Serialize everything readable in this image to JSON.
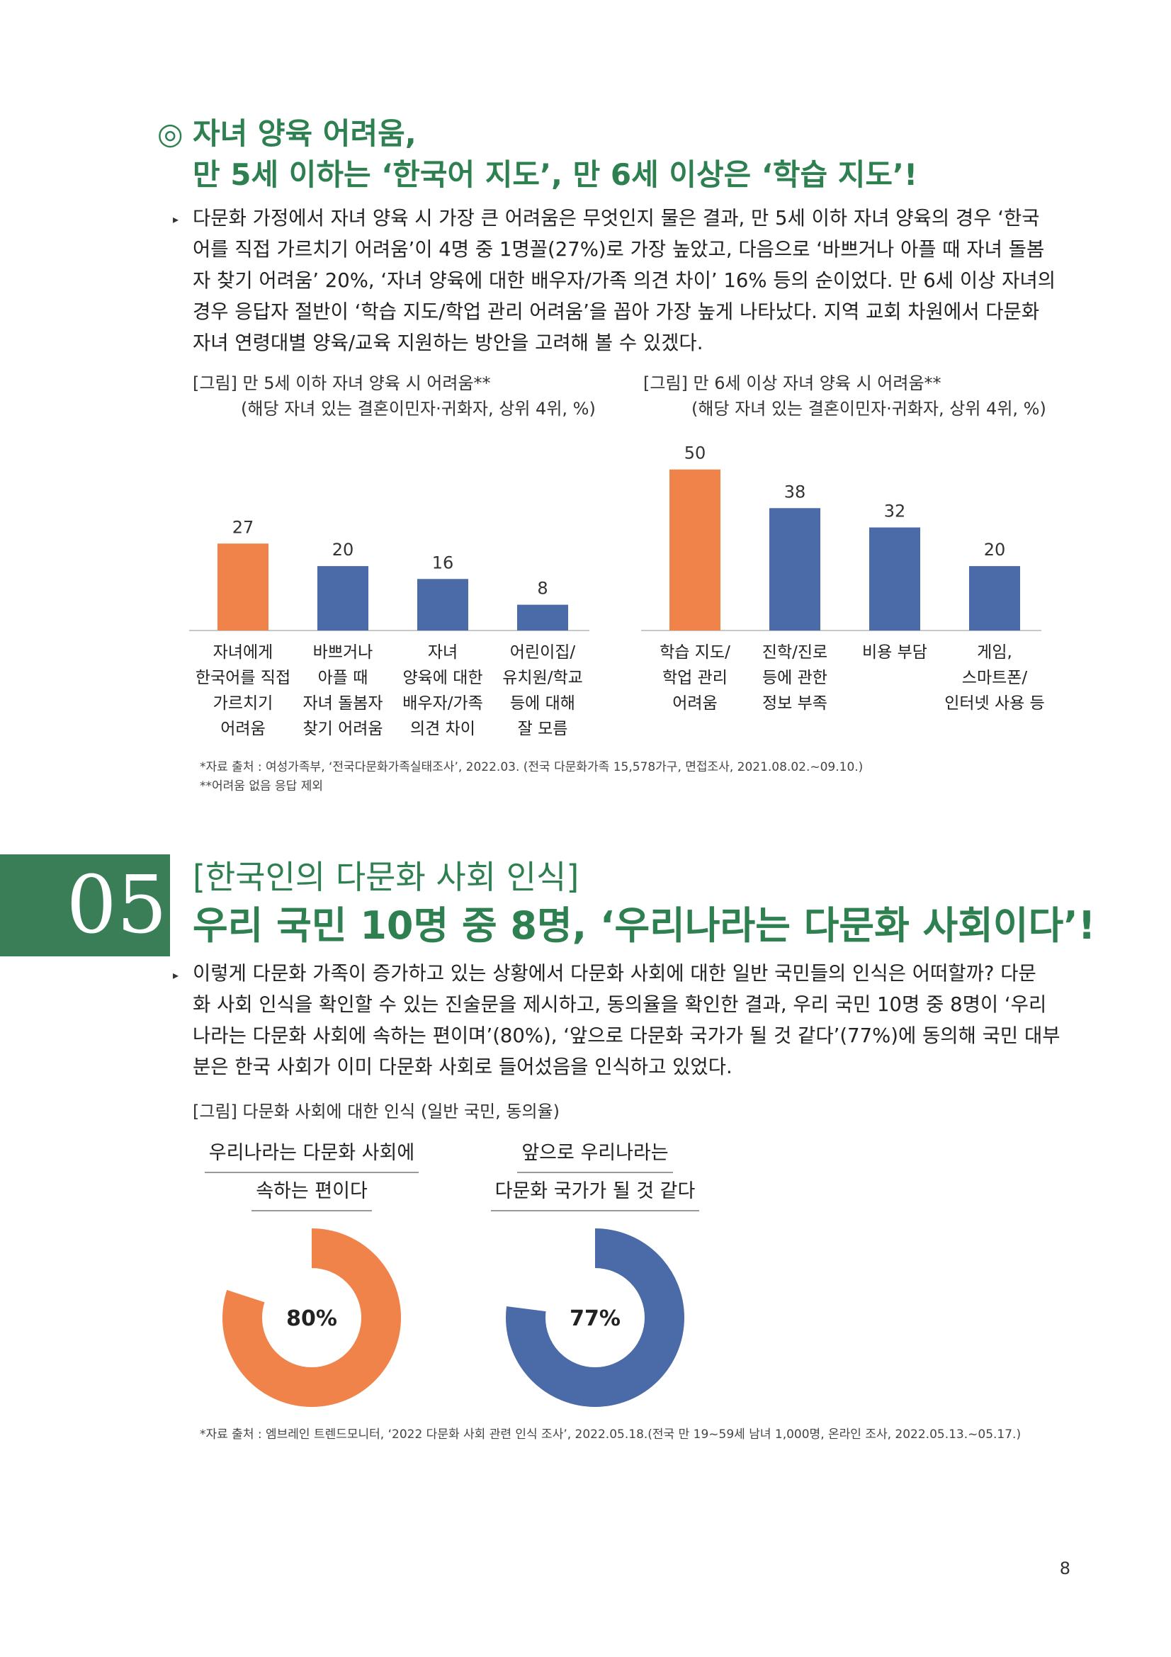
{
  "section1": {
    "heading_symbol": "◎",
    "heading_line1": "자녀 양육 어려움,",
    "heading_line2": "만 5세 이하는 ‘한국어 지도’, 만 6세 이상은 ‘학습 지도’!",
    "bullet": "▸",
    "paragraph_lines": [
      "다문화 가정에서 자녀 양육 시 가장 큰 어려움은 무엇인지 물은 결과, 만 5세 이하 자녀 양육의 경우 ‘한국",
      "어를 직접 가르치기 어려움’이 4명 중 1명꼴(27%)로 가장 높았고, 다음으로 ‘바쁘거나 아플 때 자녀 돌봄",
      "자 찾기 어려움’ 20%, ‘자녀 양육에 대한 배우자/가족 의견 차이’ 16% 등의 순이었다. 만 6세 이상 자녀의",
      "경우 응답자 절반이 ‘학습 지도/학업 관리 어려움’을 꼽아 가장 높게 나타났다. 지역 교회 차원에서 다문화",
      "자녀 연령대별 양육/교육 지원하는 방안을 고려해 볼 수 있겠다."
    ]
  },
  "chart_data": [
    {
      "type": "bar",
      "title": "[그림] 만 5세 이하 자녀 양육 시 어려움**",
      "subtitle": "(해당 자녀 있는 결혼이민자·귀화자, 상위 4위, %)",
      "categories": [
        [
          "자녀에게",
          "한국어를 직접",
          "가르치기",
          "어려움"
        ],
        [
          "바쁘거나",
          "아플 때",
          "자녀 돌봄자",
          "찾기 어려움"
        ],
        [
          "자녀",
          "양육에 대한",
          "배우자/가족",
          "의견 차이"
        ],
        [
          "어린이집/",
          "유치원/학교",
          "등에 대해",
          "잘 모름"
        ]
      ],
      "values": [
        27,
        20,
        16,
        8
      ],
      "colors": [
        "#f0834a",
        "#4a6aa8",
        "#4a6aa8",
        "#4a6aa8"
      ],
      "ylim": [
        0,
        55
      ]
    },
    {
      "type": "bar",
      "title": "[그림] 만 6세 이상 자녀 양육 시 어려움**",
      "subtitle": "(해당 자녀 있는 결혼이민자·귀화자, 상위 4위, %)",
      "categories": [
        [
          "학습 지도/",
          "학업 관리",
          "어려움"
        ],
        [
          "진학/진로",
          "등에 관한",
          "정보 부족"
        ],
        [
          "비용 부담"
        ],
        [
          "게임,",
          "스마트폰/",
          "인터넷 사용 등"
        ]
      ],
      "values": [
        50,
        38,
        32,
        20
      ],
      "colors": [
        "#f0834a",
        "#4a6aa8",
        "#4a6aa8",
        "#4a6aa8"
      ],
      "ylim": [
        0,
        55
      ]
    },
    {
      "type": "pie",
      "title": "[그림] 다문화 사회에 대한 인식 (일반 국민, 동의율)",
      "items": [
        {
          "label_lines": [
            "우리나라는 다문화 사회에",
            "속하는 편이다"
          ],
          "value": 80,
          "display": "80%",
          "color": "#f0834a"
        },
        {
          "label_lines": [
            "앞으로 우리나라는",
            "다문화 국가가 될 것 같다"
          ],
          "value": 77,
          "display": "77%",
          "color": "#4a6aa8"
        }
      ]
    }
  ],
  "notes1": [
    "*자료 출처 : 여성가족부, ‘전국다문화가족실태조사’, 2022.03. (전국 다문화가족 15,578가구, 면접조사, 2021.08.02.~09.10.)",
    "**어려움 없음 응답 제외"
  ],
  "section2": {
    "number": "05",
    "category": "[한국인의 다문화 사회 인식]",
    "title": "우리 국민 10명 중 8명, ‘우리나라는 다문화 사회이다’!",
    "bullet": "▸",
    "paragraph_lines": [
      "이렇게 다문화 가족이 증가하고 있는 상황에서 다문화 사회에 대한 일반 국민들의 인식은 어떠할까? 다문",
      "화 사회 인식을 확인할 수 있는 진술문을 제시하고, 동의율을 확인한 결과, 우리 국민 10명 중 8명이 ‘우리",
      "나라는 다문화 사회에 속하는 편이며’(80%), ‘앞으로 다문화 국가가 될 것 같다’(77%)에 동의해 국민 대부",
      "분은 한국 사회가 이미 다문화 사회로 들어섰음을 인식하고 있었다."
    ]
  },
  "note2": "*자료 출처 : 엠브레인 트렌드모니터, ‘2022 다문화 사회 관련 인식 조사’, 2022.05.18.(전국 만 19~59세 남녀 1,000명, 온라인 조사, 2022.05.13.~05.17.)",
  "page_number": "8"
}
